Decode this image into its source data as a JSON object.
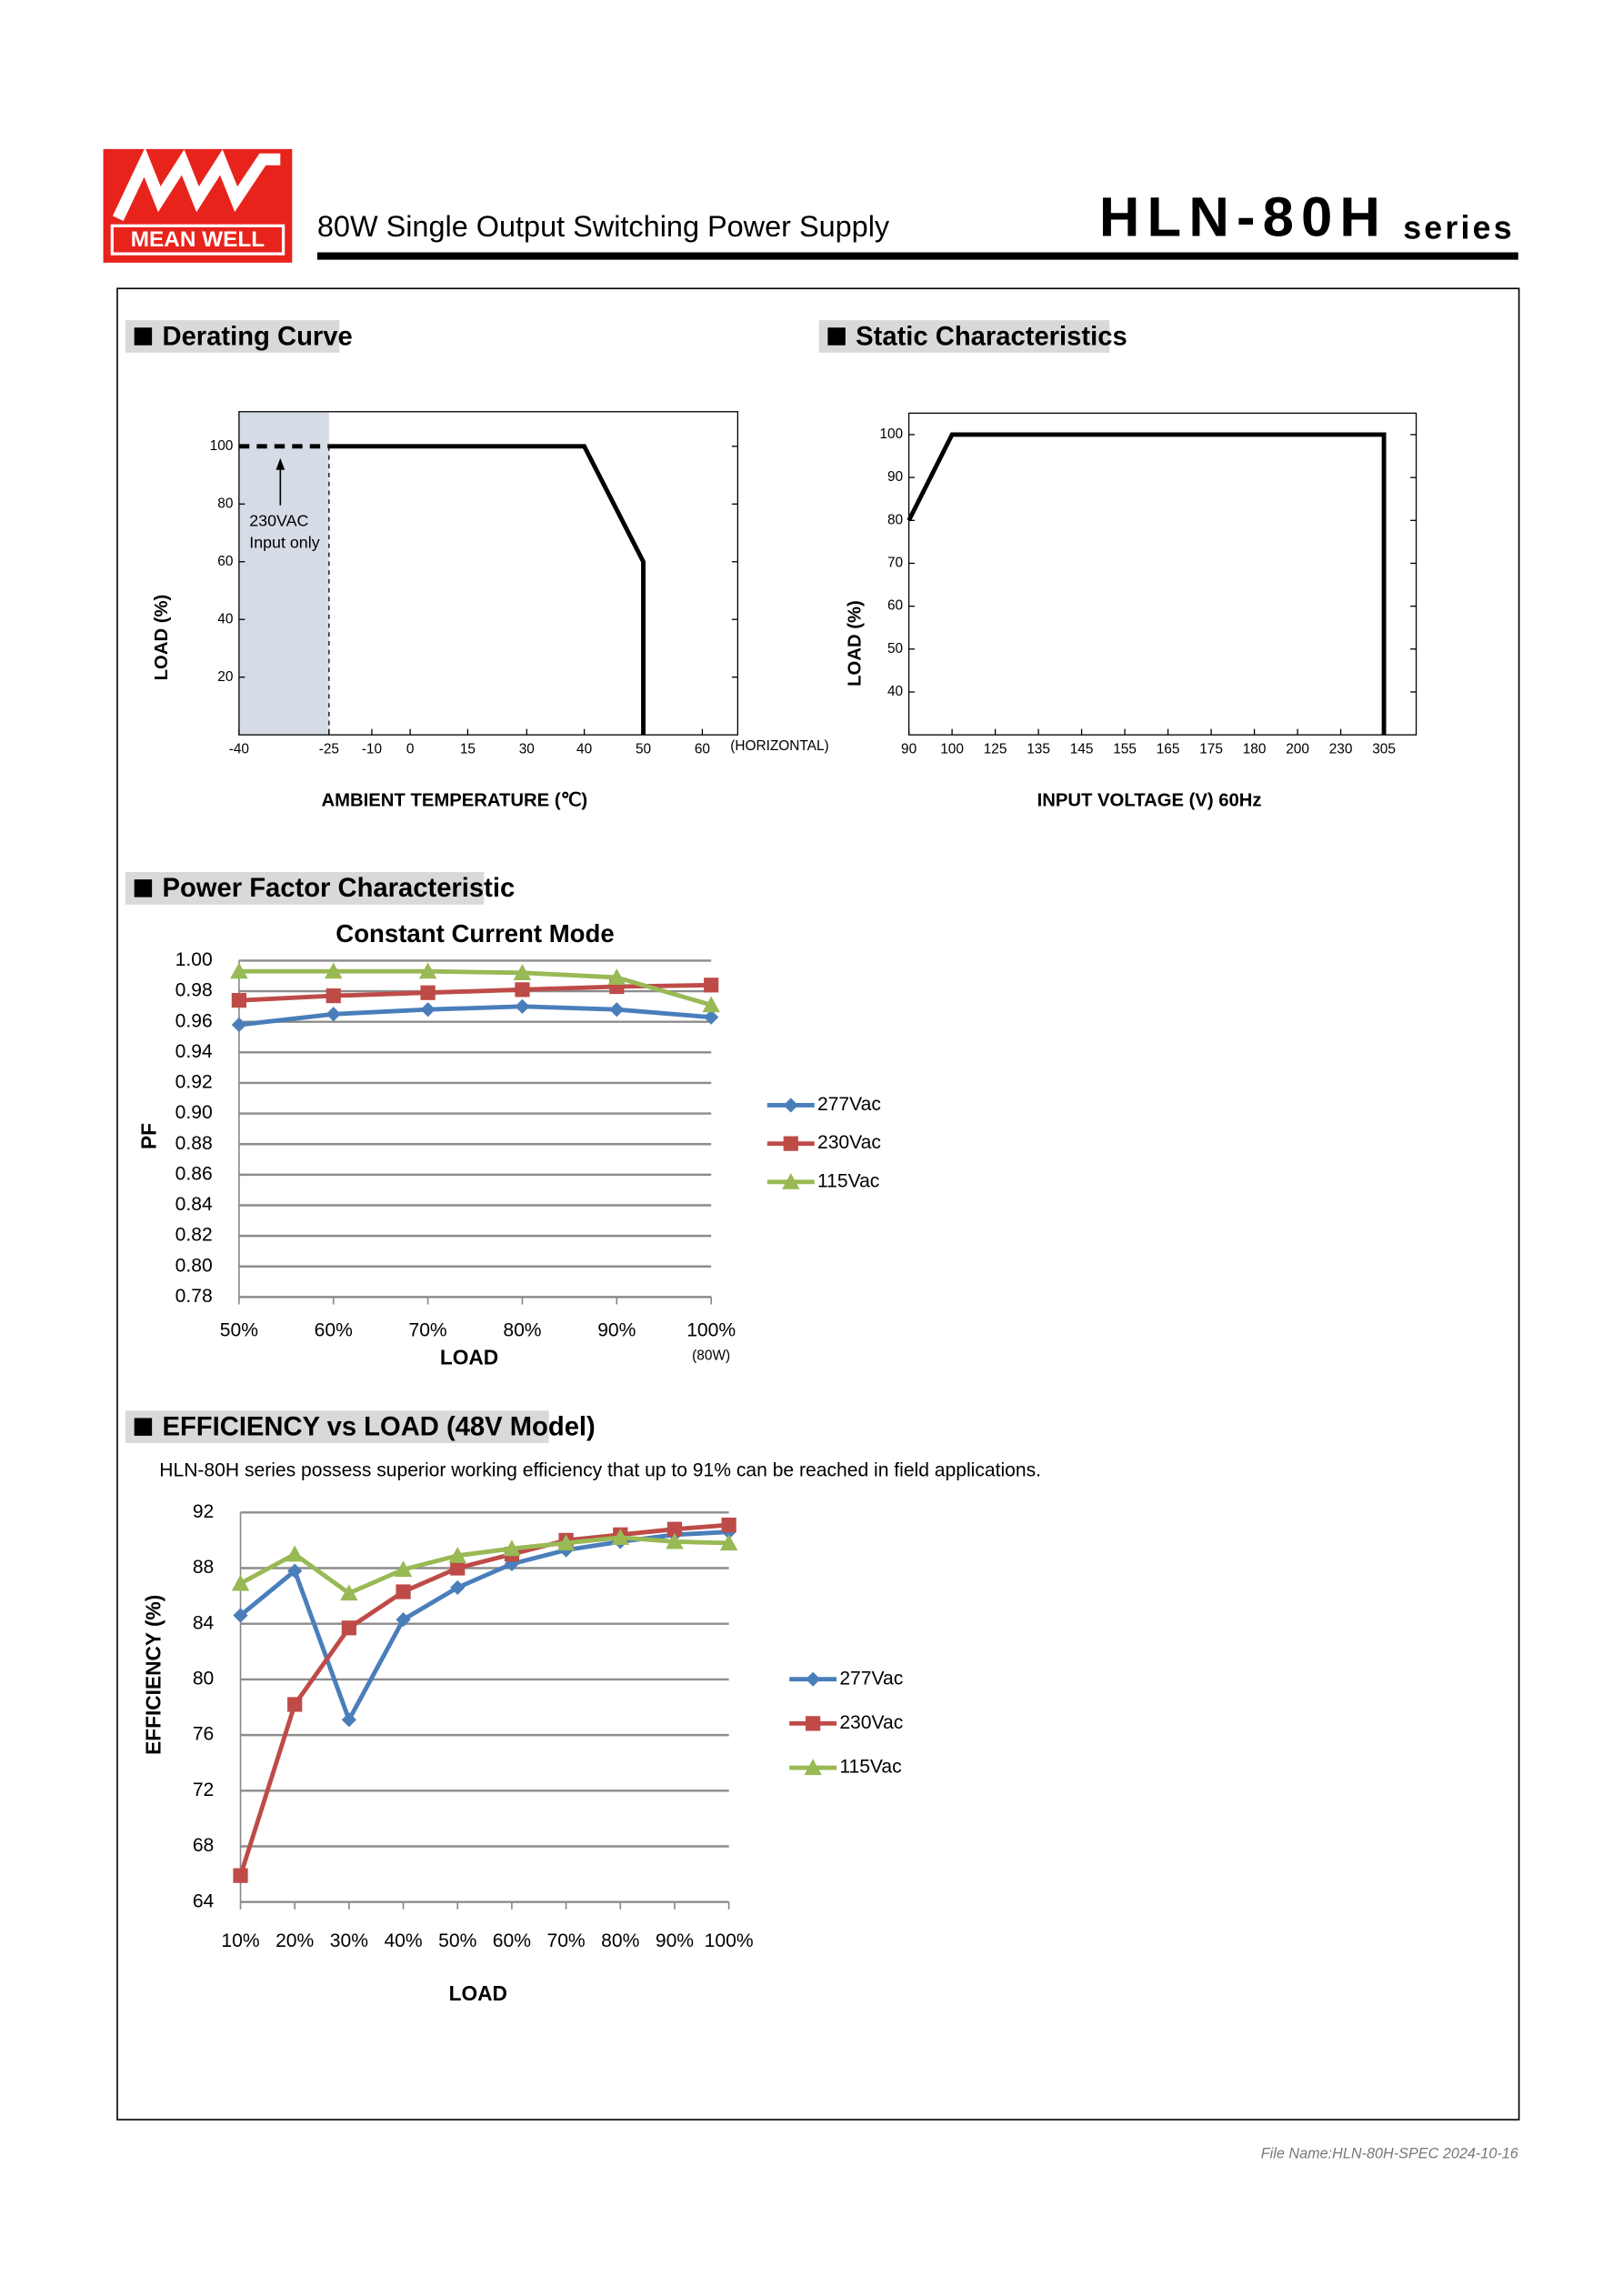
{
  "header": {
    "logo": "MEAN WELL",
    "subtitle": "80W Single Output Switching Power Supply",
    "model": "HLN-80H",
    "series_word": "series"
  },
  "footer": "File Name:HLN-80H-SPEC  2024-10-16",
  "chart_data": [
    {
      "type": "line",
      "heading": "Derating Curve",
      "xlabel": "AMBIENT TEMPERATURE (℃)",
      "ylabel": "LOAD (%)",
      "x_note": "(HORIZONTAL)",
      "annotation": [
        "230VAC",
        "Input only"
      ],
      "series": [
        {
          "x": [
            -40,
            -25
          ],
          "values": [
            100,
            100
          ],
          "color": "#000000",
          "dash": true
        },
        {
          "x": [
            -25,
            40,
            50,
            50
          ],
          "values": [
            100,
            100,
            60,
            0
          ],
          "color": "#000000"
        }
      ],
      "xlim": [
        -40,
        66
      ],
      "xticks": [
        -40,
        -25,
        -10,
        0,
        15,
        30,
        40,
        50,
        60
      ],
      "ylim": [
        0,
        112
      ],
      "yticks": [
        20,
        40,
        60,
        80,
        100
      ]
    },
    {
      "type": "line",
      "heading": "Static Characteristics",
      "xlabel": "INPUT VOLTAGE (V) 60Hz",
      "ylabel": "LOAD (%)",
      "series": [
        {
          "x": [
            90,
            100,
            305,
            305
          ],
          "values": [
            80,
            100,
            100,
            30
          ],
          "color": "#000000"
        }
      ],
      "xlim": [
        90,
        361
      ],
      "xticks": [
        90,
        100,
        125,
        135,
        145,
        155,
        165,
        175,
        180,
        200,
        230,
        305
      ],
      "ylim": [
        30,
        105
      ],
      "yticks": [
        40,
        50,
        60,
        70,
        80,
        90,
        100
      ]
    },
    {
      "type": "line",
      "heading": "Power Factor Characteristic",
      "title": "Constant Current Mode",
      "xlabel": "LOAD",
      "ylabel": "PF",
      "x_note": "(80W)",
      "categories": [
        "50%",
        "60%",
        "70%",
        "80%",
        "90%",
        "100%"
      ],
      "series": [
        {
          "name": "277Vac",
          "color": "#4a7ebb",
          "values": [
            0.958,
            0.965,
            0.968,
            0.97,
            0.968,
            0.963
          ]
        },
        {
          "name": "230Vac",
          "color": "#be4b48",
          "values": [
            0.974,
            0.977,
            0.979,
            0.981,
            0.983,
            0.984
          ]
        },
        {
          "name": "115Vac",
          "color": "#98b954",
          "values": [
            0.993,
            0.993,
            0.993,
            0.992,
            0.989,
            0.971
          ]
        }
      ],
      "ylim": [
        0.78,
        1.0
      ],
      "yticks": [
        {
          "value": 0.78,
          "label": "0.78"
        },
        0.82,
        0.84,
        0.86,
        0.88,
        {
          "value": 0.9,
          "label": "0.90"
        },
        0.92,
        0.94,
        0.96,
        0.98,
        {
          "value": 1.0,
          "label": "1.00"
        },
        {
          "value": 0.8,
          "label": "0.80"
        }
      ],
      "grid": true
    },
    {
      "type": "line",
      "heading": "EFFICIENCY vs LOAD (48V Model)",
      "description": "HLN-80H series possess superior working efficiency that up to 91% can be reached in field applications.",
      "xlabel": "LOAD",
      "ylabel": "EFFICIENCY (%)",
      "categories": [
        "10%",
        "20%",
        "30%",
        "40%",
        "50%",
        "60%",
        "70%",
        "80%",
        "90%",
        "100%"
      ],
      "series": [
        {
          "name": "277Vac",
          "color": "#4a7ebb",
          "values": [
            84.6,
            87.8,
            77.1,
            84.3,
            86.6,
            88.3,
            89.3,
            89.9,
            90.4,
            90.6
          ]
        },
        {
          "name": "230Vac",
          "color": "#be4b48",
          "values": [
            65.9,
            78.2,
            83.7,
            86.3,
            88.0,
            89.0,
            90.0,
            90.4,
            90.8,
            91.1
          ]
        },
        {
          "name": "115Vac",
          "color": "#98b954",
          "values": [
            86.9,
            89.0,
            86.2,
            87.9,
            88.9,
            89.4,
            89.8,
            90.2,
            89.9,
            89.8
          ]
        }
      ],
      "ylim": [
        64,
        92
      ],
      "yticks": [
        64,
        68,
        72,
        76,
        80,
        84,
        88,
        92
      ],
      "grid": true
    }
  ]
}
